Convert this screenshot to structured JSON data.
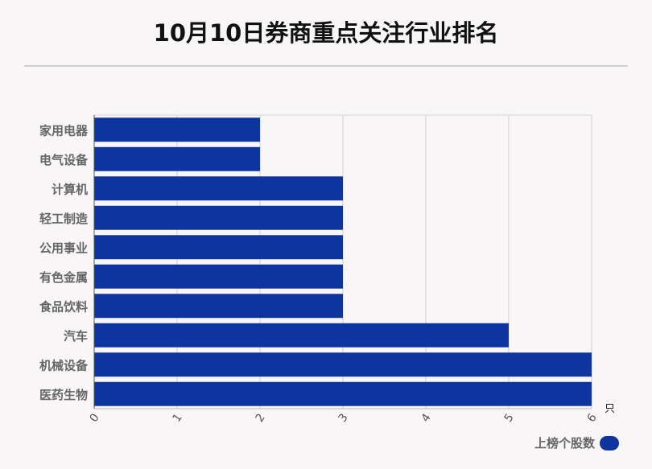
{
  "chart_data": {
    "type": "bar",
    "orientation": "horizontal",
    "title": "10月10日券商重点关注行业排名",
    "categories": [
      "家用电器",
      "电气设备",
      "计算机",
      "轻工制造",
      "公用事业",
      "有色金属",
      "食品饮料",
      "汽车",
      "机械设备",
      "医药生物"
    ],
    "series": [
      {
        "name": "上榜个股数",
        "values": [
          2,
          2,
          3,
          3,
          3,
          3,
          3,
          5,
          6,
          6
        ]
      }
    ],
    "xlim": [
      0,
      6
    ],
    "x_ticks": [
      "0",
      "1",
      "2",
      "3",
      "4",
      "5",
      "6"
    ],
    "x_unit": "只",
    "grid": true,
    "legend_position": "bottom-right",
    "bar_color": "#0e34a0"
  }
}
